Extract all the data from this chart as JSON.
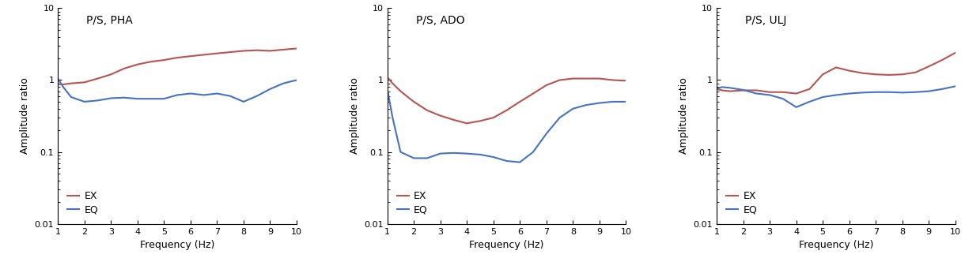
{
  "panels": [
    {
      "title": "P/S, PHA",
      "ex_x": [
        1.0,
        1.2,
        1.5,
        2.0,
        2.5,
        3.0,
        3.5,
        4.0,
        4.5,
        5.0,
        5.5,
        6.0,
        6.5,
        7.0,
        7.5,
        8.0,
        8.5,
        9.0,
        9.5,
        10.0
      ],
      "ex_y": [
        0.88,
        0.87,
        0.9,
        0.93,
        1.05,
        1.2,
        1.45,
        1.65,
        1.8,
        1.9,
        2.05,
        2.15,
        2.25,
        2.35,
        2.45,
        2.55,
        2.6,
        2.55,
        2.65,
        2.75
      ],
      "eq_x": [
        1.0,
        1.2,
        1.5,
        2.0,
        2.5,
        3.0,
        3.5,
        4.0,
        4.5,
        5.0,
        5.5,
        6.0,
        6.5,
        7.0,
        7.5,
        8.0,
        8.5,
        9.0,
        9.5,
        10.0
      ],
      "eq_y": [
        1.05,
        0.8,
        0.58,
        0.5,
        0.52,
        0.56,
        0.57,
        0.55,
        0.55,
        0.55,
        0.62,
        0.65,
        0.62,
        0.65,
        0.6,
        0.5,
        0.6,
        0.75,
        0.9,
        1.0
      ]
    },
    {
      "title": "P/S, ADO",
      "ex_x": [
        1.0,
        1.2,
        1.5,
        2.0,
        2.5,
        3.0,
        3.5,
        4.0,
        4.5,
        5.0,
        5.5,
        6.0,
        6.5,
        7.0,
        7.5,
        8.0,
        8.5,
        9.0,
        9.5,
        10.0
      ],
      "ex_y": [
        1.1,
        0.9,
        0.7,
        0.5,
        0.38,
        0.32,
        0.28,
        0.25,
        0.27,
        0.3,
        0.38,
        0.5,
        0.65,
        0.85,
        1.0,
        1.05,
        1.05,
        1.05,
        1.0,
        0.98
      ],
      "eq_x": [
        1.0,
        1.2,
        1.5,
        2.0,
        2.5,
        3.0,
        3.5,
        4.0,
        4.5,
        5.0,
        5.5,
        6.0,
        6.5,
        7.0,
        7.5,
        8.0,
        8.5,
        9.0,
        9.5,
        10.0
      ],
      "eq_y": [
        0.75,
        0.3,
        0.1,
        0.082,
        0.082,
        0.095,
        0.097,
        0.095,
        0.092,
        0.085,
        0.075,
        0.072,
        0.1,
        0.18,
        0.3,
        0.4,
        0.45,
        0.48,
        0.5,
        0.5
      ]
    },
    {
      "title": "P/S, ULJ",
      "ex_x": [
        1.0,
        1.2,
        1.5,
        2.0,
        2.5,
        3.0,
        3.5,
        4.0,
        4.5,
        5.0,
        5.5,
        6.0,
        6.5,
        7.0,
        7.5,
        8.0,
        8.5,
        9.0,
        9.5,
        10.0
      ],
      "ex_y": [
        0.75,
        0.72,
        0.7,
        0.72,
        0.72,
        0.68,
        0.68,
        0.65,
        0.75,
        1.2,
        1.5,
        1.35,
        1.25,
        1.2,
        1.18,
        1.2,
        1.28,
        1.55,
        1.9,
        2.4
      ],
      "eq_x": [
        1.0,
        1.2,
        1.5,
        2.0,
        2.5,
        3.0,
        3.5,
        4.0,
        4.5,
        5.0,
        5.5,
        6.0,
        6.5,
        7.0,
        7.5,
        8.0,
        8.5,
        9.0,
        9.5,
        10.0
      ],
      "eq_y": [
        0.75,
        0.8,
        0.78,
        0.73,
        0.65,
        0.62,
        0.55,
        0.42,
        0.5,
        0.58,
        0.62,
        0.65,
        0.67,
        0.68,
        0.68,
        0.67,
        0.68,
        0.7,
        0.75,
        0.82
      ]
    }
  ],
  "ex_color": "#b85450",
  "eq_color": "#4472c4",
  "ylabel": "Amplitude ratio",
  "xlabel": "Frequency (Hz)",
  "ylim": [
    0.01,
    10
  ],
  "xlim": [
    1,
    10
  ],
  "line_width": 1.5,
  "legend_ex": "EX",
  "legend_eq": "EQ",
  "title_fontsize": 10,
  "label_fontsize": 9,
  "tick_fontsize": 8,
  "legend_fontsize": 9
}
